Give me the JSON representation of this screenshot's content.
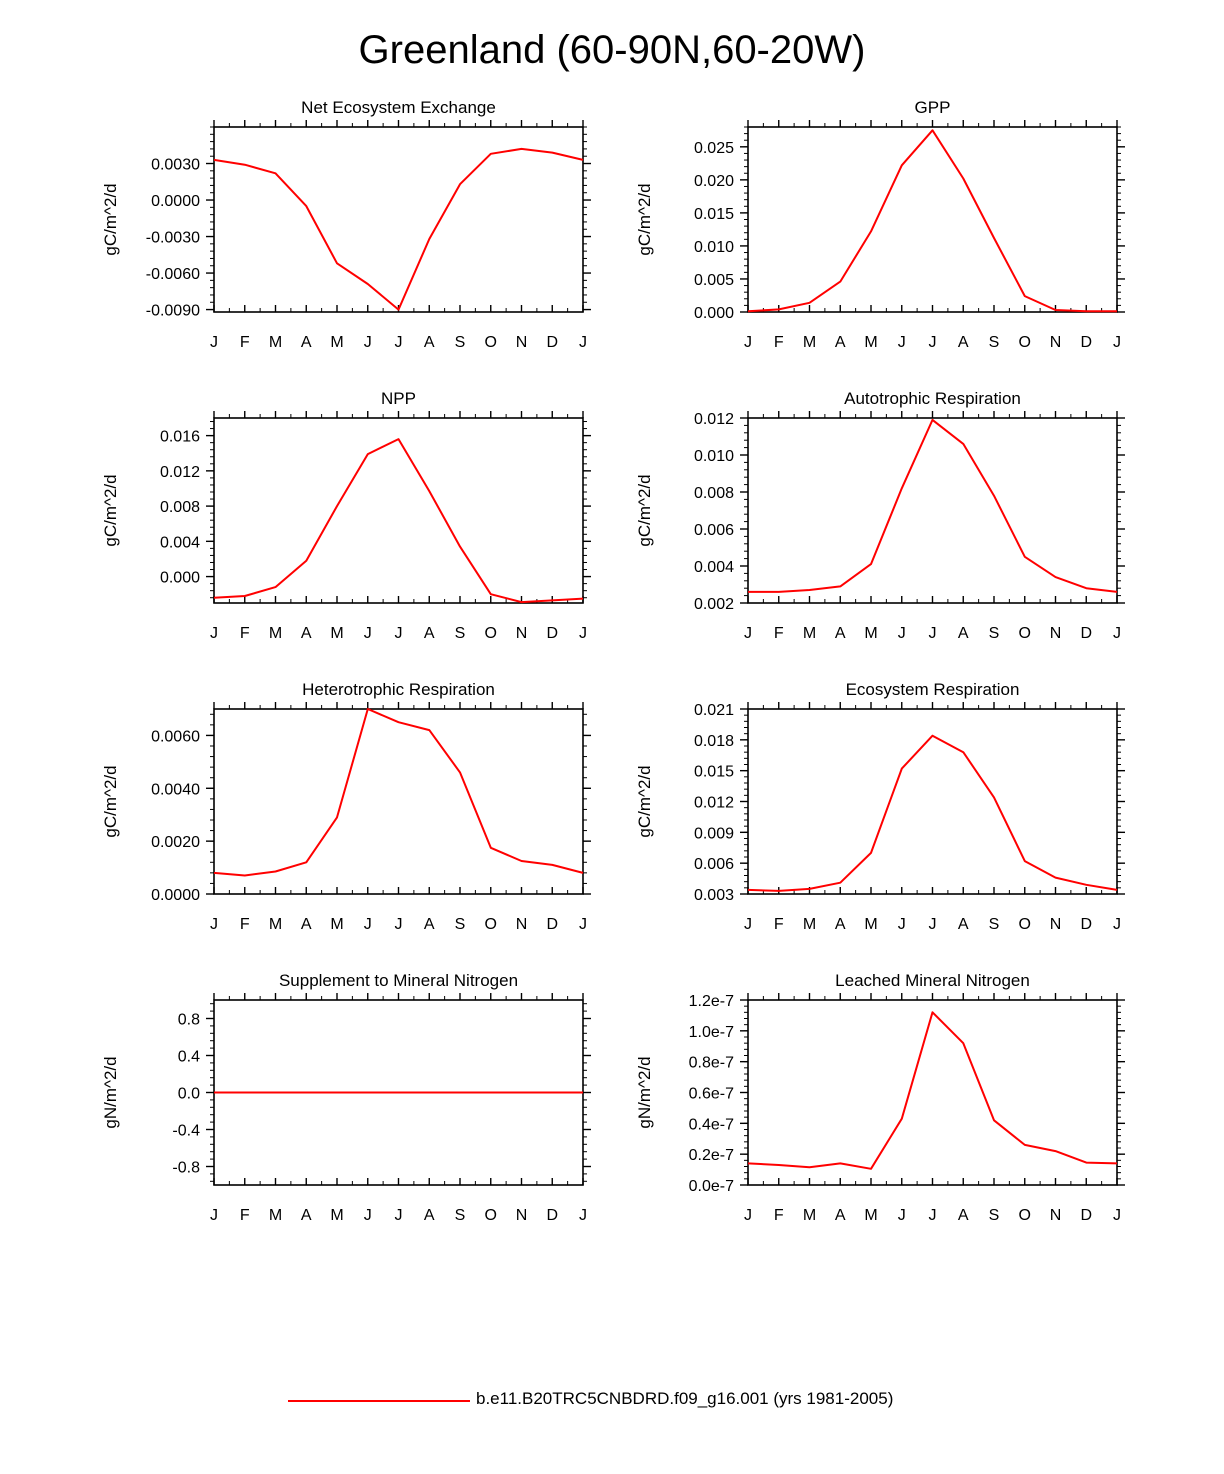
{
  "title": "Greenland (60-90N,60-20W)",
  "legend": {
    "label": "b.e11.B20TRC5CNBDRD.f09_g16.001 (yrs 1981-2005)",
    "color": "#ff0000"
  },
  "chart_data": [
    {
      "type": "line",
      "title": "Net Ecosystem Exchange",
      "ylabel": "gC/m^2/d",
      "categories": [
        "J",
        "F",
        "M",
        "A",
        "M",
        "J",
        "J",
        "A",
        "S",
        "O",
        "N",
        "D",
        "J"
      ],
      "ylim": [
        -0.0092,
        0.006
      ],
      "yticks": [
        -0.009,
        -0.006,
        -0.003,
        0.0,
        0.003
      ],
      "ytick_labels": [
        "-0.0090",
        "-0.0060",
        "-0.0030",
        "0.0000",
        "0.0030"
      ],
      "series": [
        {
          "color": "#ff0000",
          "values": [
            0.0033,
            0.0029,
            0.0022,
            -0.0005,
            -0.0052,
            -0.0069,
            -0.009,
            -0.0032,
            0.0013,
            0.0038,
            0.0042,
            0.0039,
            0.0033
          ]
        }
      ]
    },
    {
      "type": "line",
      "title": "GPP",
      "ylabel": "gC/m^2/d",
      "categories": [
        "J",
        "F",
        "M",
        "A",
        "M",
        "J",
        "J",
        "A",
        "S",
        "O",
        "N",
        "D",
        "J"
      ],
      "ylim": [
        0.0,
        0.028
      ],
      "yticks": [
        0.0,
        0.005,
        0.01,
        0.015,
        0.02,
        0.025
      ],
      "ytick_labels": [
        "0.000",
        "0.005",
        "0.010",
        "0.015",
        "0.020",
        "0.025"
      ],
      "series": [
        {
          "color": "#ff0000",
          "values": [
            0.0001,
            0.0004,
            0.0014,
            0.0046,
            0.0122,
            0.0222,
            0.0275,
            0.0202,
            0.0112,
            0.0024,
            0.0003,
            0.0001,
            0.0001
          ]
        }
      ]
    },
    {
      "type": "line",
      "title": "NPP",
      "ylabel": "gC/m^2/d",
      "categories": [
        "J",
        "F",
        "M",
        "A",
        "M",
        "J",
        "J",
        "A",
        "S",
        "O",
        "N",
        "D",
        "J"
      ],
      "ylim": [
        -0.003,
        0.018
      ],
      "yticks": [
        0.0,
        0.004,
        0.008,
        0.012,
        0.016
      ],
      "ytick_labels": [
        "0.000",
        "0.004",
        "0.008",
        "0.012",
        "0.016"
      ],
      "series": [
        {
          "color": "#ff0000",
          "values": [
            -0.0024,
            -0.0022,
            -0.0012,
            0.0018,
            0.008,
            0.0139,
            0.0156,
            0.0097,
            0.0034,
            -0.002,
            -0.0029,
            -0.0027,
            -0.0025
          ]
        }
      ]
    },
    {
      "type": "line",
      "title": "Autotrophic Respiration",
      "ylabel": "gC/m^2/d",
      "categories": [
        "J",
        "F",
        "M",
        "A",
        "M",
        "J",
        "J",
        "A",
        "S",
        "O",
        "N",
        "D",
        "J"
      ],
      "ylim": [
        0.002,
        0.012
      ],
      "yticks": [
        0.002,
        0.004,
        0.006,
        0.008,
        0.01,
        0.012
      ],
      "ytick_labels": [
        "0.002",
        "0.004",
        "0.006",
        "0.008",
        "0.010",
        "0.012"
      ],
      "series": [
        {
          "color": "#ff0000",
          "values": [
            0.0026,
            0.0026,
            0.0027,
            0.0029,
            0.0041,
            0.0082,
            0.0119,
            0.0106,
            0.0078,
            0.0045,
            0.0034,
            0.0028,
            0.0026
          ]
        }
      ]
    },
    {
      "type": "line",
      "title": "Heterotrophic Respiration",
      "ylabel": "gC/m^2/d",
      "categories": [
        "J",
        "F",
        "M",
        "A",
        "M",
        "J",
        "J",
        "A",
        "S",
        "O",
        "N",
        "D",
        "J"
      ],
      "ylim": [
        0.0,
        0.007
      ],
      "yticks": [
        0.0,
        0.002,
        0.004,
        0.006
      ],
      "ytick_labels": [
        "0.0000",
        "0.0020",
        "0.0040",
        "0.0060"
      ],
      "series": [
        {
          "color": "#ff0000",
          "values": [
            0.0008,
            0.0007,
            0.00085,
            0.0012,
            0.0029,
            0.007,
            0.0065,
            0.0062,
            0.0046,
            0.00175,
            0.00125,
            0.0011,
            0.0008
          ]
        }
      ]
    },
    {
      "type": "line",
      "title": "Ecosystem Respiration",
      "ylabel": "gC/m^2/d",
      "categories": [
        "J",
        "F",
        "M",
        "A",
        "M",
        "J",
        "J",
        "A",
        "S",
        "O",
        "N",
        "D",
        "J"
      ],
      "ylim": [
        0.003,
        0.021
      ],
      "yticks": [
        0.003,
        0.006,
        0.009,
        0.012,
        0.015,
        0.018,
        0.021
      ],
      "ytick_labels": [
        "0.003",
        "0.006",
        "0.009",
        "0.012",
        "0.015",
        "0.018",
        "0.021"
      ],
      "series": [
        {
          "color": "#ff0000",
          "values": [
            0.0034,
            0.0033,
            0.0035,
            0.0041,
            0.007,
            0.0152,
            0.0184,
            0.0168,
            0.0124,
            0.0062,
            0.0046,
            0.0039,
            0.0034
          ]
        }
      ]
    },
    {
      "type": "line",
      "title": "Supplement to Mineral Nitrogen",
      "ylabel": "gN/m^2/d",
      "categories": [
        "J",
        "F",
        "M",
        "A",
        "M",
        "J",
        "J",
        "A",
        "S",
        "O",
        "N",
        "D",
        "J"
      ],
      "ylim": [
        -1.0,
        1.0
      ],
      "yticks": [
        -0.8,
        -0.4,
        0.0,
        0.4,
        0.8
      ],
      "ytick_labels": [
        "-0.8",
        "-0.4",
        "0.0",
        "0.4",
        "0.8"
      ],
      "series": [
        {
          "color": "#ff0000",
          "values": [
            0,
            0,
            0,
            0,
            0,
            0,
            0,
            0,
            0,
            0,
            0,
            0,
            0
          ]
        }
      ]
    },
    {
      "type": "line",
      "title": "Leached Mineral Nitrogen",
      "ylabel": "gN/m^2/d",
      "categories": [
        "J",
        "F",
        "M",
        "A",
        "M",
        "J",
        "J",
        "A",
        "S",
        "O",
        "N",
        "D",
        "J"
      ],
      "ylim": [
        0.0,
        1.2e-07
      ],
      "yticks": [
        0.0,
        2e-08,
        4e-08,
        6e-08,
        8e-08,
        1e-07,
        1.2e-07
      ],
      "ytick_labels": [
        "0.0e-7",
        "0.2e-7",
        "0.4e-7",
        "0.6e-7",
        "0.8e-7",
        "1.0e-7",
        "1.2e-7"
      ],
      "series": [
        {
          "color": "#ff0000",
          "values": [
            1.4e-08,
            1.3e-08,
            1.15e-08,
            1.4e-08,
            1.05e-08,
            4.3e-08,
            1.12e-07,
            9.2e-08,
            4.2e-08,
            2.6e-08,
            2.2e-08,
            1.45e-08,
            1.4e-08
          ]
        }
      ]
    }
  ]
}
